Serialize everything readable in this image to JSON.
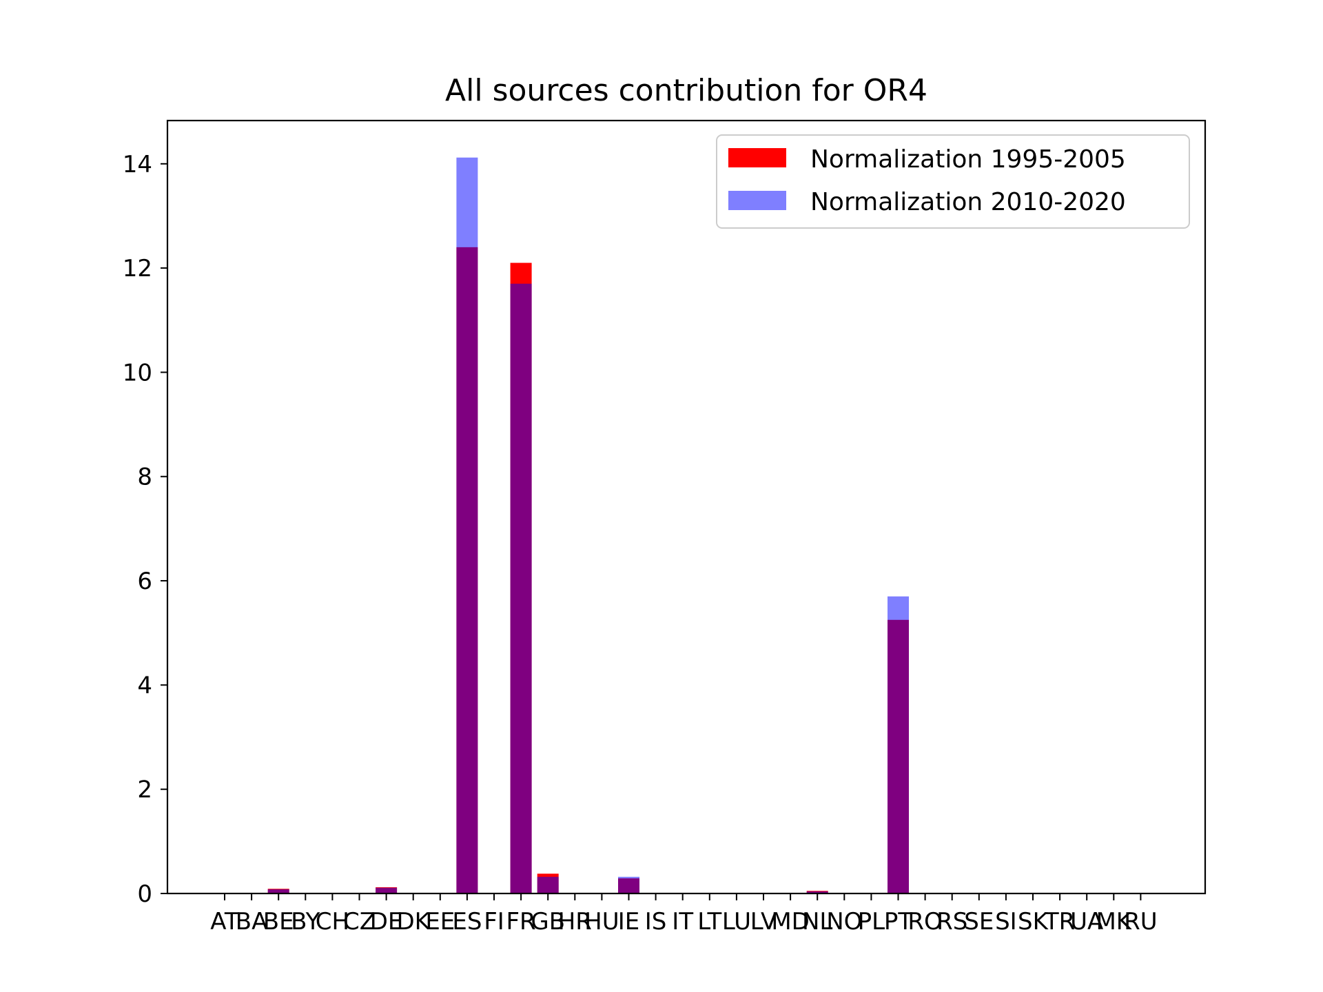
{
  "chart_data": {
    "type": "bar",
    "title": "All sources contribution for OR4",
    "xlabel": "",
    "ylabel": "",
    "categories": [
      "AT",
      "BA",
      "BE",
      "BY",
      "CH",
      "CZ",
      "DE",
      "DK",
      "EE",
      "ES",
      "FI",
      "FR",
      "GB",
      "HR",
      "HU",
      "IE",
      "IS",
      "IT",
      "LT",
      "LU",
      "LV",
      "MD",
      "NL",
      "NO",
      "PL",
      "PT",
      "RO",
      "RS",
      "SE",
      "SI",
      "SK",
      "TR",
      "UA",
      "MK",
      "RU"
    ],
    "series": [
      {
        "name": "Normalization 1995-2005",
        "color": "#ff0000",
        "values": [
          0,
          0,
          0.09,
          0,
          0,
          0,
          0.12,
          0,
          0,
          12.4,
          0,
          12.1,
          0.38,
          0,
          0,
          0.29,
          0,
          0,
          0,
          0,
          0,
          0,
          0.05,
          0,
          0,
          5.25,
          0,
          0,
          0,
          0,
          0,
          0,
          0,
          0,
          0
        ]
      },
      {
        "name": "Normalization 2010-2020",
        "color": "#0000ff",
        "alpha": 0.5,
        "values": [
          0,
          0,
          0.08,
          0,
          0,
          0,
          0.11,
          0,
          0,
          14.12,
          0,
          11.7,
          0.32,
          0,
          0,
          0.32,
          0,
          0,
          0,
          0,
          0,
          0,
          0.04,
          0,
          0,
          5.7,
          0,
          0,
          0,
          0,
          0,
          0,
          0,
          0,
          0
        ]
      }
    ],
    "overlap_color": "#800080",
    "yticks": [
      0,
      2,
      4,
      6,
      8,
      10,
      12,
      14
    ],
    "ylim": [
      0,
      14.83
    ],
    "grid": false,
    "legend_position": "top-right"
  }
}
